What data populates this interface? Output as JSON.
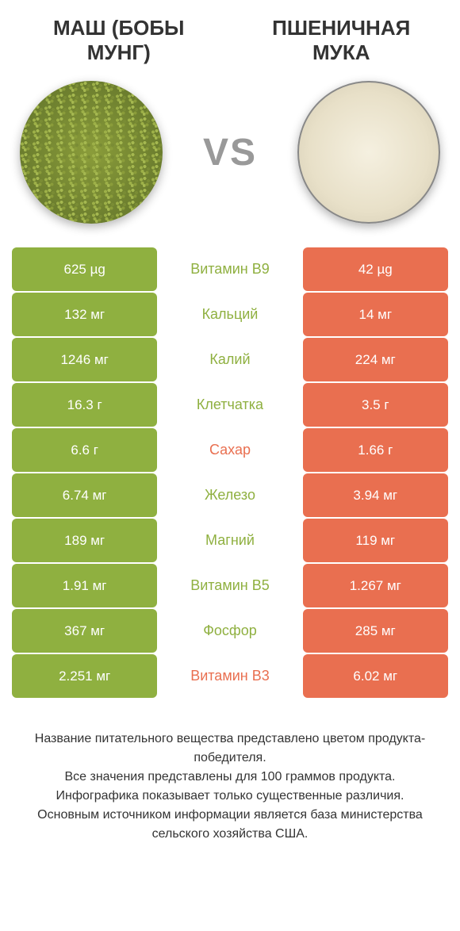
{
  "colors": {
    "green": "#8fb040",
    "orange": "#e96f50",
    "text_dark": "#333333",
    "vs_gray": "#999999",
    "background": "#ffffff"
  },
  "header": {
    "title_left": "МАШ (БОБЫ МУНГ)",
    "title_right": "ПШЕНИЧНАЯ МУКА",
    "vs": "VS"
  },
  "table": {
    "rows": [
      {
        "left": "625 µg",
        "middle": "Витамин B9",
        "right": "42 µg",
        "winner": "left"
      },
      {
        "left": "132 мг",
        "middle": "Кальций",
        "right": "14 мг",
        "winner": "left"
      },
      {
        "left": "1246 мг",
        "middle": "Калий",
        "right": "224 мг",
        "winner": "left"
      },
      {
        "left": "16.3 г",
        "middle": "Клетчатка",
        "right": "3.5 г",
        "winner": "left"
      },
      {
        "left": "6.6 г",
        "middle": "Сахар",
        "right": "1.66 г",
        "winner": "right"
      },
      {
        "left": "6.74 мг",
        "middle": "Железо",
        "right": "3.94 мг",
        "winner": "left"
      },
      {
        "left": "189 мг",
        "middle": "Магний",
        "right": "119 мг",
        "winner": "left"
      },
      {
        "left": "1.91 мг",
        "middle": "Витамин B5",
        "right": "1.267 мг",
        "winner": "left"
      },
      {
        "left": "367 мг",
        "middle": "Фосфор",
        "right": "285 мг",
        "winner": "left"
      },
      {
        "left": "2.251 мг",
        "middle": "Витамин B3",
        "right": "6.02 мг",
        "winner": "right"
      }
    ]
  },
  "footer": {
    "line1": "Название питательного вещества представлено цветом продукта-победителя.",
    "line2": "Все значения представлены для 100 граммов продукта.",
    "line3": "Инфографика показывает только существенные различия.",
    "line4": "Основным источником информации является база министерства сельского хозяйства США."
  }
}
